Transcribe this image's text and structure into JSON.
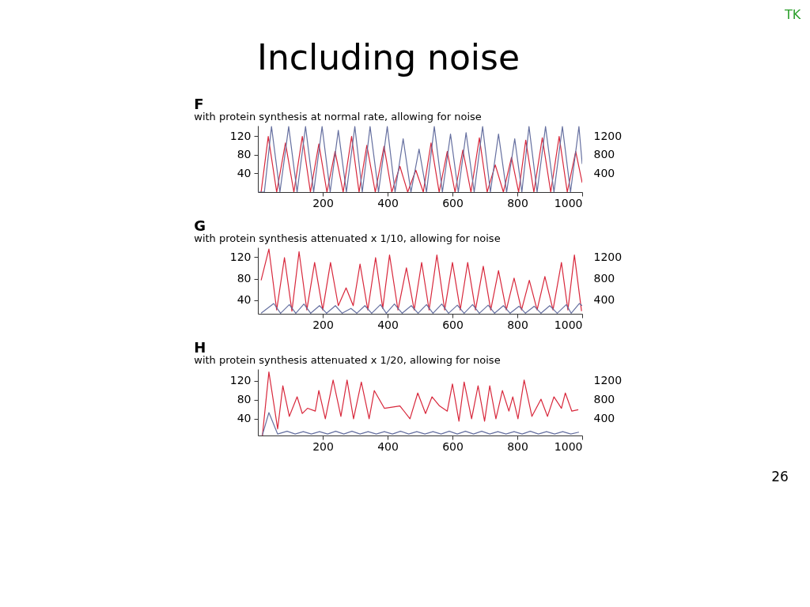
{
  "chart_data": [
    {
      "type": "line",
      "title": "F",
      "subtitle": "with protein synthesis at normal rate, allowing for noise",
      "annotations": [
        "Including noise",
        "TK"
      ],
      "xlim": [
        0,
        1000
      ],
      "xticks": [
        200,
        400,
        600,
        800,
        1000
      ],
      "ylim": [
        0,
        142
      ],
      "yticks": [
        40,
        80,
        120
      ],
      "y2lim": [
        0,
        1420
      ],
      "y2ticks": [
        400,
        800,
        1200
      ],
      "series": [
        {
          "color": "#d8283c",
          "x": [
            10,
            32,
            58,
            85,
            111,
            137,
            162,
            188,
            213,
            238,
            263,
            289,
            312,
            336,
            362,
            389,
            413,
            438,
            462,
            487,
            510,
            534,
            559,
            584,
            608,
            632,
            657,
            683,
            707,
            732,
            757,
            782,
            804,
            826,
            851,
            877,
            903,
            929,
            954,
            980,
            1000
          ],
          "values": [
            0,
            119,
            0,
            105,
            0,
            119,
            0,
            103,
            0,
            87,
            0,
            119,
            0,
            100,
            0,
            98,
            0,
            55,
            0,
            47,
            0,
            105,
            0,
            87,
            0,
            90,
            0,
            116,
            0,
            58,
            0,
            74,
            0,
            111,
            0,
            116,
            0,
            119,
            0,
            87,
            20
          ]
        },
        {
          "color": "#6670a0",
          "axis": "y2",
          "x": [
            0,
            20,
            42,
            68,
            95,
            121,
            147,
            172,
            198,
            223,
            248,
            273,
            299,
            322,
            346,
            372,
            399,
            423,
            448,
            472,
            497,
            520,
            544,
            569,
            594,
            618,
            642,
            667,
            693,
            717,
            742,
            767,
            792,
            814,
            836,
            861,
            887,
            913,
            939,
            964,
            990,
            1000
          ],
          "values": [
            0,
            0,
            1400,
            0,
            1400,
            0,
            1400,
            0,
            1400,
            0,
            1320,
            0,
            1400,
            0,
            1400,
            0,
            1400,
            0,
            1140,
            0,
            920,
            0,
            1400,
            0,
            1240,
            0,
            1270,
            0,
            1400,
            0,
            1240,
            0,
            1140,
            0,
            1400,
            0,
            1400,
            0,
            1400,
            0,
            1400,
            600
          ]
        }
      ]
    },
    {
      "type": "line",
      "title": "G",
      "subtitle": "with protein synthesis attenuated x 1/10, allowing for noise",
      "xlim": [
        0,
        1000
      ],
      "xticks": [
        200,
        400,
        600,
        800,
        1000
      ],
      "ylim": [
        15,
        138
      ],
      "yticks": [
        40,
        80,
        120
      ],
      "y2lim": [
        150,
        1380
      ],
      "y2ticks": [
        400,
        800,
        1200
      ],
      "series": [
        {
          "color": "#d8283c",
          "x": [
            10,
            34,
            58,
            82,
            105,
            127,
            151,
            175,
            200,
            224,
            248,
            272,
            294,
            315,
            339,
            363,
            385,
            406,
            432,
            458,
            482,
            505,
            528,
            552,
            576,
            600,
            624,
            647,
            671,
            695,
            718,
            742,
            766,
            790,
            813,
            837,
            861,
            885,
            910,
            936,
            956,
            976,
            998
          ],
          "values": [
            77,
            135,
            22,
            119,
            20,
            130,
            22,
            110,
            22,
            110,
            30,
            63,
            30,
            107,
            22,
            119,
            25,
            124,
            22,
            100,
            22,
            110,
            22,
            124,
            22,
            110,
            22,
            110,
            22,
            103,
            22,
            95,
            22,
            81,
            22,
            77,
            22,
            84,
            22,
            110,
            22,
            124,
            20
          ]
        },
        {
          "color": "#6670a0",
          "axis": "y2",
          "x": [
            10,
            49,
            70,
            97,
            117,
            142,
            163,
            190,
            212,
            239,
            260,
            287,
            305,
            330,
            351,
            378,
            396,
            421,
            445,
            473,
            494,
            520,
            540,
            567,
            588,
            615,
            636,
            662,
            683,
            710,
            730,
            757,
            778,
            805,
            825,
            852,
            873,
            900,
            923,
            951,
            966,
            991,
            1000
          ],
          "values": [
            160,
            340,
            160,
            320,
            160,
            330,
            160,
            300,
            160,
            300,
            160,
            250,
            160,
            300,
            160,
            320,
            160,
            330,
            160,
            300,
            160,
            320,
            160,
            330,
            160,
            310,
            160,
            320,
            160,
            310,
            160,
            300,
            160,
            290,
            160,
            290,
            160,
            300,
            160,
            320,
            160,
            340,
            300
          ]
        }
      ]
    },
    {
      "type": "line",
      "title": "H",
      "subtitle": "with protein synthesis attenuated x 1/20, allowing for noise",
      "annotations": [
        "26"
      ],
      "xlim": [
        0,
        1000
      ],
      "xticks": [
        200,
        400,
        600,
        800,
        1000
      ],
      "ylim": [
        5,
        144
      ],
      "yticks": [
        40,
        80,
        120
      ],
      "y2lim": [
        50,
        1440
      ],
      "y2ticks": [
        400,
        800,
        1200
      ],
      "series": [
        {
          "color": "#d8283c",
          "x": [
            14,
            34,
            61,
            77,
            97,
            121,
            137,
            153,
            177,
            188,
            208,
            232,
            256,
            275,
            295,
            319,
            343,
            359,
            390,
            438,
            469,
            493,
            517,
            537,
            560,
            584,
            600,
            620,
            636,
            659,
            679,
            699,
            715,
            734,
            754,
            774,
            786,
            802,
            821,
            845,
            873,
            893,
            913,
            936,
            948,
            968,
            988
          ],
          "values": [
            5,
            138,
            19,
            109,
            45,
            86,
            51,
            62,
            56,
            99,
            40,
            121,
            45,
            121,
            40,
            117,
            40,
            99,
            62,
            67,
            40,
            94,
            51,
            86,
            67,
            56,
            113,
            35,
            117,
            40,
            109,
            35,
            109,
            40,
            99,
            56,
            86,
            40,
            121,
            45,
            81,
            45,
            86,
            62,
            94,
            56,
            59
          ]
        },
        {
          "color": "#6670a0",
          "axis": "y2",
          "x": [
            14,
            34,
            61,
            90,
            115,
            140,
            165,
            190,
            215,
            240,
            265,
            290,
            315,
            340,
            365,
            390,
            415,
            440,
            465,
            490,
            515,
            540,
            565,
            590,
            615,
            640,
            665,
            690,
            715,
            740,
            765,
            790,
            815,
            840,
            865,
            890,
            915,
            940,
            965,
            990
          ],
          "values": [
            60,
            530,
            80,
            140,
            80,
            130,
            80,
            130,
            80,
            140,
            80,
            140,
            80,
            130,
            80,
            130,
            80,
            140,
            80,
            130,
            80,
            130,
            80,
            140,
            80,
            140,
            80,
            140,
            80,
            130,
            80,
            130,
            80,
            140,
            80,
            130,
            80,
            130,
            80,
            120
          ]
        }
      ]
    }
  ]
}
